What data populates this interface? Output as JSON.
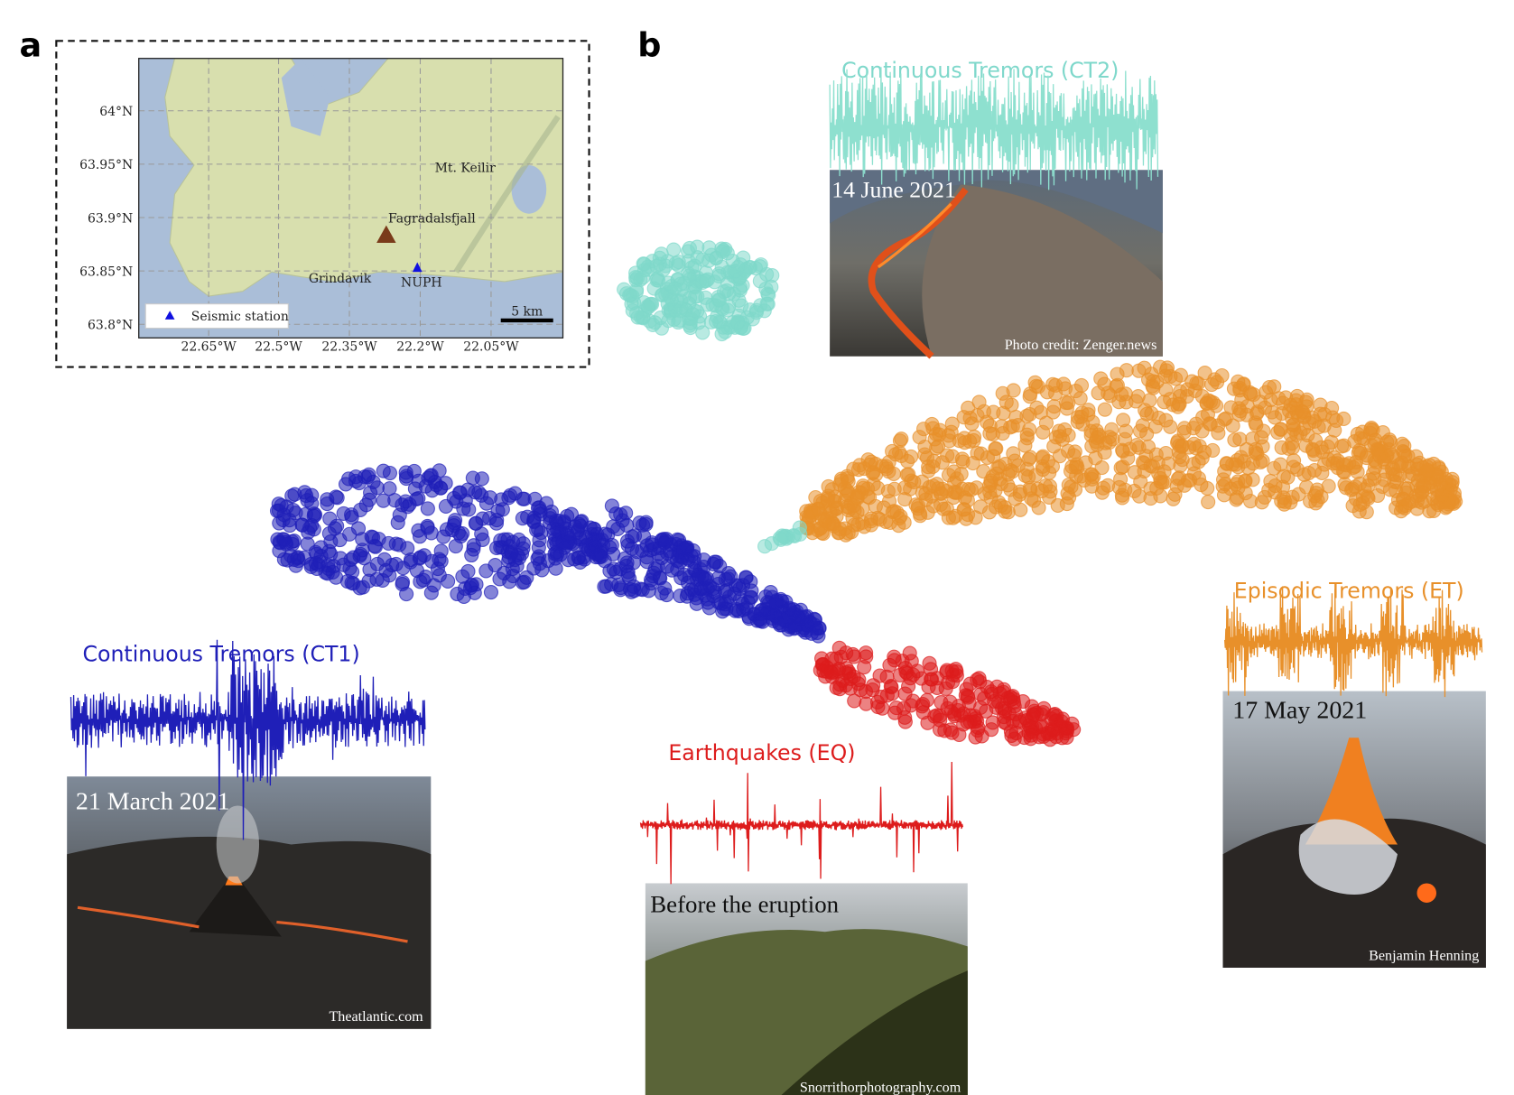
{
  "panel_a": {
    "label": "a",
    "map": {
      "lat_labels": [
        "64°N",
        "63.95°N",
        "63.9°N",
        "63.85°N",
        "63.8°N"
      ],
      "lon_labels": [
        "22.65°W",
        "22.5°W",
        "22.35°W",
        "22.2°W",
        "22.05°W"
      ],
      "places": {
        "keilir": "Mt. Keilir",
        "fagra": "Fagradalsfjall",
        "grindavik": "Grindavik",
        "station": "NUPH"
      },
      "legend": "Seismic station",
      "scale_bar": "5 km"
    }
  },
  "panel_b": {
    "label": "b",
    "clusters": [
      {
        "name": "Continuous Tremors (CT2)",
        "color": "#7fd8cb",
        "date": "14 June 2021",
        "credit": "Photo credit: Zenger.news"
      },
      {
        "name": "Episodic Tremors (ET)",
        "color": "#e8902a",
        "date": "17 May 2021",
        "credit": "Benjamin Henning"
      },
      {
        "name": "Continuous Tremors (CT1)",
        "color": "#1f1fb8",
        "date": "21 March 2021",
        "credit": "Theatlantic.com"
      },
      {
        "name": "Earthquakes (EQ)",
        "color": "#dd1c1c",
        "date": "Before the eruption",
        "credit": "Snorrithorphotography.com"
      }
    ]
  }
}
